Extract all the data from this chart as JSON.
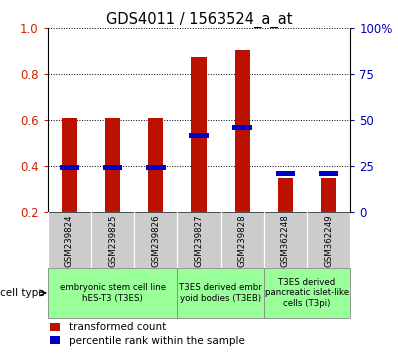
{
  "title": "GDS4011 / 1563524_a_at",
  "samples": [
    "GSM239824",
    "GSM239825",
    "GSM239826",
    "GSM239827",
    "GSM239828",
    "GSM362248",
    "GSM362249"
  ],
  "red_values": [
    0.61,
    0.61,
    0.61,
    0.875,
    0.905,
    0.35,
    0.35
  ],
  "blue_values": [
    0.395,
    0.395,
    0.395,
    0.535,
    0.57,
    0.37,
    0.37
  ],
  "y_min": 0.2,
  "y_max": 1.0,
  "y_ticks_left": [
    0.2,
    0.4,
    0.6,
    0.8,
    1.0
  ],
  "y_ticks_right_vals": [
    0,
    25,
    50,
    75,
    100
  ],
  "y_ticks_right_labels": [
    "0",
    "25",
    "50",
    "75",
    "100%"
  ],
  "cell_groups": [
    {
      "label": "embryonic stem cell line\nhES-T3 (T3ES)",
      "start": 0,
      "end": 3
    },
    {
      "label": "T3ES derived embr\nyoid bodies (T3EB)",
      "start": 3,
      "end": 5
    },
    {
      "label": "T3ES derived\npancreatic islet-like\ncells (T3pi)",
      "start": 5,
      "end": 7
    }
  ],
  "cell_type_label": "cell type",
  "legend_red": "transformed count",
  "legend_blue": "percentile rank within the sample",
  "bar_width": 0.35,
  "red_color": "#bb1100",
  "blue_color": "#0000cc",
  "tick_color_left": "#cc2200",
  "tick_color_right": "#0000bb",
  "sample_bg_color": "#cccccc",
  "cell_group_color": "#99ff99",
  "cell_group_border": "#888888"
}
